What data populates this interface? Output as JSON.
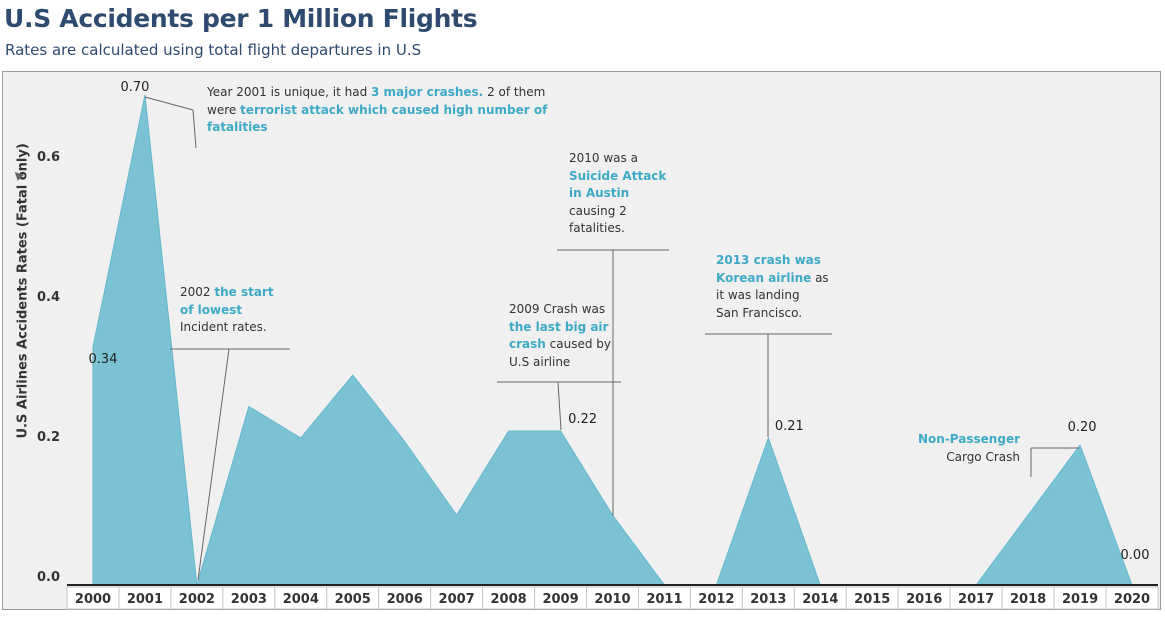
{
  "page": {
    "title": "U.S Accidents per 1 Million Flights",
    "subtitle": "Rates are calculated using total flight departures in U.S"
  },
  "chart_data": {
    "type": "area",
    "ylabel": "U.S Airlines Accidents Rates (Fatal only)",
    "xlabel": "",
    "ylim": [
      0,
      0.73
    ],
    "yticks": [
      "0.0",
      "0.2",
      "0.4",
      "0.6"
    ],
    "grid": false,
    "fill_color": "#7bc3d4",
    "line_color": "#66b8cc",
    "categories": [
      "2000",
      "2001",
      "2002",
      "2003",
      "2004",
      "2005",
      "2006",
      "2007",
      "2008",
      "2009",
      "2010",
      "2011",
      "2012",
      "2013",
      "2014",
      "2015",
      "2016",
      "2017",
      "2018",
      "2019",
      "2020"
    ],
    "values": [
      0.34,
      0.7,
      0.0,
      0.255,
      0.21,
      0.3,
      0.205,
      0.1,
      0.22,
      0.22,
      0.1,
      0.0,
      0.0,
      0.21,
      0.0,
      0.0,
      0.0,
      0.0,
      0.1,
      0.2,
      0.0
    ],
    "data_labels": [
      {
        "index": 0,
        "text": "0.34"
      },
      {
        "index": 1,
        "text": "0.70"
      },
      {
        "index": 9,
        "text": "0.22"
      },
      {
        "index": 13,
        "text": "0.21"
      },
      {
        "index": 19,
        "text": "0.20"
      },
      {
        "index": 20,
        "text": "0.00"
      }
    ],
    "annotations": [
      {
        "id": "a2001",
        "index": 1,
        "segments": [
          {
            "t": "Year 2001 is unique, it had "
          },
          {
            "t": "3 major crashes.",
            "hl": true
          },
          {
            "t": " 2 of them"
          },
          {
            "br": true
          },
          {
            "t": "were "
          },
          {
            "t": "terrorist attack which caused high number of",
            "hl": true
          },
          {
            "br": true
          },
          {
            "t": "fatalities",
            "hl": true
          }
        ]
      },
      {
        "id": "a2002",
        "index": 2,
        "segments": [
          {
            "t": "2002 "
          },
          {
            "t": "the start",
            "hl": true
          },
          {
            "br": true
          },
          {
            "t": "of lowest",
            "hl": true
          },
          {
            "br": true
          },
          {
            "t": "Incident rates."
          }
        ]
      },
      {
        "id": "a2009",
        "index": 9,
        "segments": [
          {
            "t": "2009 Crash was"
          },
          {
            "br": true
          },
          {
            "t": "the last big air",
            "hl": true
          },
          {
            "br": true
          },
          {
            "t": "crash",
            "hl": true
          },
          {
            "t": " caused by"
          },
          {
            "br": true
          },
          {
            "t": "U.S airline"
          }
        ]
      },
      {
        "id": "a2010",
        "index": 10,
        "segments": [
          {
            "t": "2010 was a"
          },
          {
            "br": true
          },
          {
            "t": "Suicide Attack",
            "hl": true
          },
          {
            "br": true
          },
          {
            "t": "in Austin",
            "hl": true
          },
          {
            "br": true
          },
          {
            "t": "causing 2"
          },
          {
            "br": true
          },
          {
            "t": "fatalities."
          }
        ]
      },
      {
        "id": "a2013",
        "index": 13,
        "segments": [
          {
            "t": "2013 crash was",
            "hl": true
          },
          {
            "br": true
          },
          {
            "t": "Korean airline",
            "hl": true
          },
          {
            "t": " as"
          },
          {
            "br": true
          },
          {
            "t": "it was landing"
          },
          {
            "br": true
          },
          {
            "t": "San Francisco."
          }
        ]
      },
      {
        "id": "a2019",
        "index": 19,
        "segments": [
          {
            "t": "Non-Passenger",
            "hl": true
          },
          {
            "br": true
          },
          {
            "t": "Cargo Crash"
          }
        ]
      }
    ]
  }
}
